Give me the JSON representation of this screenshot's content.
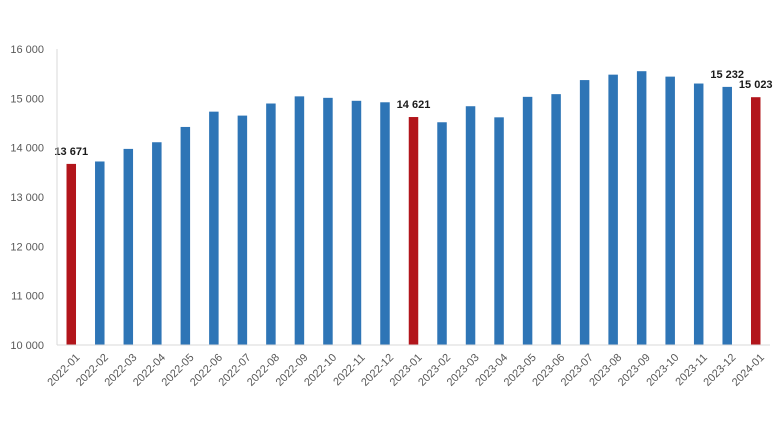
{
  "chart_data": {
    "type": "bar",
    "title": "",
    "xlabel": "",
    "ylabel": "",
    "ylim": [
      10000,
      16000
    ],
    "yticks": [
      10000,
      11000,
      12000,
      13000,
      14000,
      15000,
      16000
    ],
    "ytick_labels": [
      "10 000",
      "11 000",
      "12 000",
      "13 000",
      "14 000",
      "15 000",
      "16 000"
    ],
    "grid": false,
    "legend": "none",
    "categories": [
      "2022-01",
      "2022-02",
      "2022-03",
      "2022-04",
      "2022-05",
      "2022-06",
      "2022-07",
      "2022-08",
      "2022-09",
      "2022-10",
      "2022-11",
      "2022-12",
      "2023-01",
      "2023-02",
      "2023-03",
      "2023-04",
      "2023-05",
      "2023-06",
      "2023-07",
      "2023-08",
      "2023-09",
      "2023-10",
      "2023-11",
      "2023-12",
      "2024-01"
    ],
    "values": [
      13671,
      13720,
      13975,
      14110,
      14420,
      14730,
      14650,
      14895,
      15040,
      15010,
      14950,
      14920,
      14621,
      14515,
      14840,
      14615,
      15030,
      15085,
      15370,
      15480,
      15550,
      15440,
      15300,
      15232,
      15023
    ],
    "highlighted_indices": [
      0,
      12,
      24
    ],
    "data_labels": [
      {
        "index": 0,
        "text": "13 671"
      },
      {
        "index": 12,
        "text": "14 621"
      },
      {
        "index": 23,
        "text": "15 232"
      },
      {
        "index": 24,
        "text": "15 023"
      }
    ],
    "colors": {
      "bar": "#2e75b6",
      "highlight": "#b2151b",
      "axis": "#d9d9d9",
      "tick_text": "#595959",
      "label_text": "#1a1a1a"
    }
  }
}
